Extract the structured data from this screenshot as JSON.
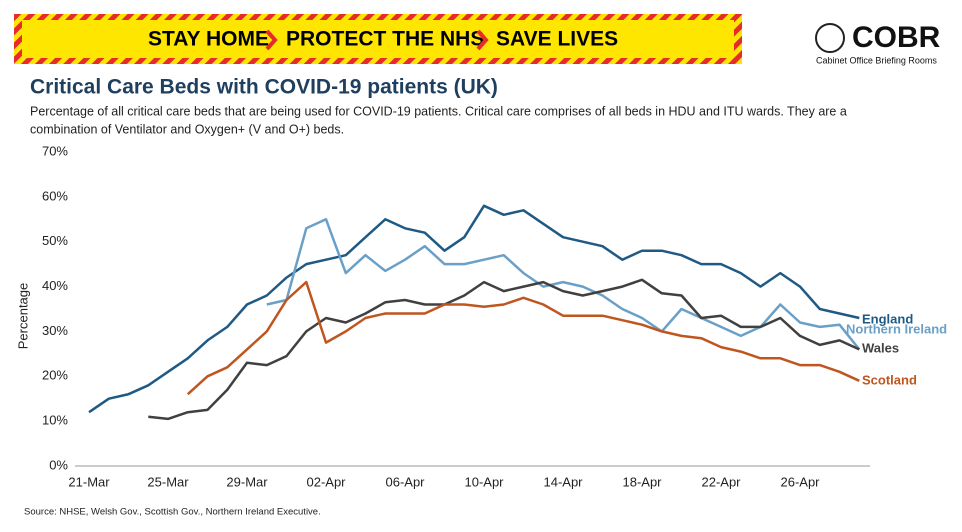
{
  "banner": {
    "items": [
      "STAY HOME",
      "PROTECT THE NHS",
      "SAVE LIVES"
    ]
  },
  "logo": {
    "name": "COBR",
    "subtitle": "Cabinet Office Briefing Rooms"
  },
  "chart_data": {
    "type": "line",
    "title": "Critical Care Beds with COVID-19 patients (UK)",
    "subtitle": [
      "Percentage of all critical care beds that are being used for COVID-19 patients. Critical care comprises of all beds in HDU and ITU wards. They are a",
      "combination of Ventilator and Oxygen+ (V and O+) beds."
    ],
    "y_label": "Percentage",
    "source": "Source: NHSE, Welsh Gov., Scottish Gov., Northern Ireland Executive.",
    "categories": [
      "21-Mar",
      null,
      null,
      null,
      "25-Mar",
      null,
      null,
      null,
      "29-Mar",
      null,
      null,
      null,
      "02-Apr",
      null,
      null,
      null,
      "06-Apr",
      null,
      null,
      null,
      "10-Apr",
      null,
      null,
      null,
      "14-Apr",
      null,
      null,
      null,
      "18-Apr",
      null,
      null,
      null,
      "22-Apr",
      null,
      null,
      null,
      "26-Apr",
      null,
      null,
      null
    ],
    "ylim": [
      0,
      70
    ],
    "yticks": [
      {
        "value": 0,
        "label": "0%"
      },
      {
        "value": 10,
        "label": "10%"
      },
      {
        "value": 20,
        "label": "20%"
      },
      {
        "value": 30,
        "label": "30%"
      },
      {
        "value": 40,
        "label": "40%"
      },
      {
        "value": 50,
        "label": "50%"
      },
      {
        "value": 60,
        "label": "60%"
      },
      {
        "value": 70,
        "label": "70%"
      }
    ],
    "series": [
      {
        "name": "England",
        "color": "#1f5a85",
        "values": [
          12,
          15,
          16,
          18,
          21,
          24,
          28,
          31,
          36,
          38,
          42,
          45,
          46,
          47,
          51,
          55,
          53,
          52,
          48,
          51,
          58,
          56,
          57,
          54,
          51,
          50,
          49,
          46,
          48,
          48,
          47,
          45,
          45,
          43,
          40,
          43,
          40,
          35,
          34,
          33
        ]
      },
      {
        "name": "Northern Ireland",
        "color": "#6aa0c8",
        "values": [
          null,
          null,
          null,
          null,
          null,
          null,
          null,
          null,
          null,
          36,
          37,
          53,
          55,
          43,
          47,
          43.5,
          46,
          49,
          45,
          45,
          46,
          47,
          43,
          40,
          41,
          40,
          38,
          35,
          33,
          30,
          35,
          33,
          31,
          29,
          31,
          36,
          32,
          31,
          31.5,
          26
        ]
      },
      {
        "name": "Wales",
        "color": "#404040",
        "values": [
          null,
          null,
          null,
          11,
          10.5,
          12,
          12.5,
          17,
          23,
          22.5,
          24.5,
          30,
          33,
          32,
          34,
          36.5,
          37,
          36,
          36,
          38,
          41,
          39,
          40,
          41,
          39,
          38,
          39,
          40,
          41.5,
          38.5,
          38,
          33,
          33.5,
          31,
          31,
          33,
          29,
          27,
          28,
          26
        ]
      },
      {
        "name": "Scotland",
        "color": "#c0561f",
        "values": [
          null,
          null,
          null,
          null,
          null,
          16,
          20,
          22,
          26,
          30,
          37,
          41,
          27.5,
          30,
          33,
          34,
          34,
          34,
          36,
          36,
          35.5,
          36,
          37.5,
          36,
          33.5,
          33.5,
          33.5,
          32.5,
          31.5,
          30,
          29,
          28.5,
          26.5,
          25.5,
          24,
          24,
          22.5,
          22.5,
          21,
          19
        ]
      }
    ]
  }
}
